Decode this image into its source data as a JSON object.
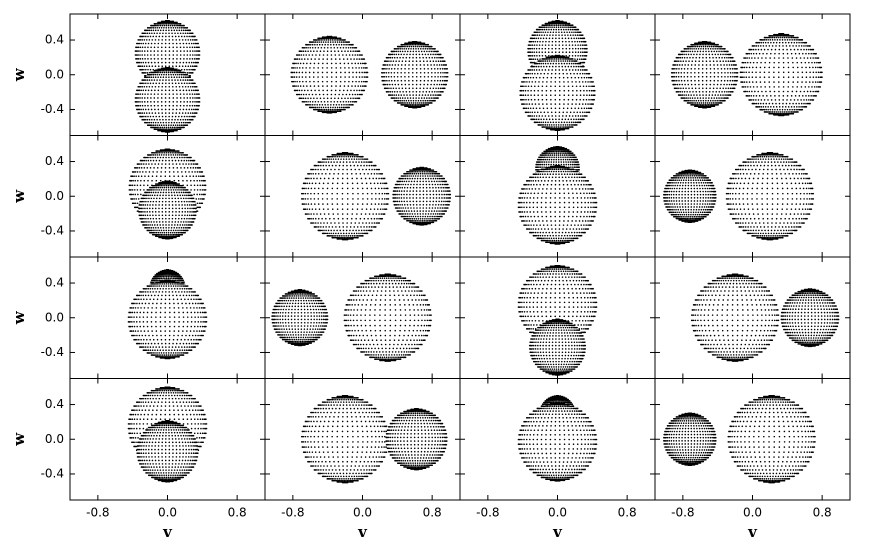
{
  "chart_data": [
    {
      "type": "sphere",
      "xlim": [
        -1.12,
        1.12
      ],
      "ylim": [
        -0.7,
        0.7
      ],
      "xticks": [
        -0.8,
        0,
        0.8
      ],
      "yticks": [
        -0.4,
        {
          "value": 0,
          "label": "0.0"
        },
        0.4
      ],
      "ylabel": "w",
      "stars": [
        {
          "v": 0,
          "w": 0.25,
          "r": 0.37
        },
        {
          "v": 0,
          "w": -0.29,
          "r": 0.37
        }
      ]
    },
    {
      "type": "sphere",
      "xlim": [
        -1.12,
        1.12
      ],
      "ylim": [
        -0.7,
        0.7
      ],
      "xticks": [
        -0.8,
        0,
        0.8
      ],
      "yticks": [
        -0.4,
        0,
        0.4
      ],
      "stars": [
        {
          "v": -0.38,
          "w": 0,
          "r": 0.44
        },
        {
          "v": 0.6,
          "w": 0,
          "r": 0.38
        }
      ]
    },
    {
      "type": "sphere",
      "xlim": [
        -1.12,
        1.12
      ],
      "ylim": [
        -0.7,
        0.7
      ],
      "xticks": [
        -0.8,
        0,
        0.8
      ],
      "yticks": [
        -0.4,
        0,
        0.4
      ],
      "stars": [
        {
          "v": 0,
          "w": 0.28,
          "r": 0.34
        },
        {
          "v": 0,
          "w": -0.21,
          "r": 0.43
        }
      ]
    },
    {
      "type": "sphere",
      "xlim": [
        -1.12,
        1.12
      ],
      "ylim": [
        -0.7,
        0.7
      ],
      "xticks": [
        -0.8,
        0,
        0.8
      ],
      "yticks": [
        -0.4,
        0,
        0.4
      ],
      "stars": [
        {
          "v": -0.55,
          "w": 0,
          "r": 0.38
        },
        {
          "v": 0.33,
          "w": 0,
          "r": 0.47
        }
      ]
    },
    {
      "type": "sphere",
      "xlim": [
        -1.12,
        1.12
      ],
      "ylim": [
        -0.7,
        0.7
      ],
      "xticks": [
        -0.8,
        0,
        0.8
      ],
      "yticks": [
        -0.4,
        {
          "value": 0,
          "label": "0.0"
        },
        0.4
      ],
      "ylabel": "w",
      "stars": [
        {
          "v": 0,
          "w": 0.1,
          "r": 0.44
        },
        {
          "v": 0,
          "w": -0.16,
          "r": 0.33
        }
      ]
    },
    {
      "type": "sphere",
      "xlim": [
        -1.12,
        1.12
      ],
      "ylim": [
        -0.7,
        0.7
      ],
      "xticks": [
        -0.8,
        0,
        0.8
      ],
      "yticks": [
        -0.4,
        0,
        0.4
      ],
      "stars": [
        {
          "v": -0.2,
          "w": 0,
          "r": 0.5
        },
        {
          "v": 0.68,
          "w": 0,
          "r": 0.33
        }
      ]
    },
    {
      "type": "sphere",
      "xlim": [
        -1.12,
        1.12
      ],
      "ylim": [
        -0.7,
        0.7
      ],
      "xticks": [
        -0.8,
        0,
        0.8
      ],
      "yticks": [
        -0.4,
        0,
        0.4
      ],
      "stars": [
        {
          "v": 0,
          "w": 0.32,
          "r": 0.25
        },
        {
          "v": 0,
          "w": -0.1,
          "r": 0.45
        }
      ]
    },
    {
      "type": "sphere",
      "xlim": [
        -1.12,
        1.12
      ],
      "ylim": [
        -0.7,
        0.7
      ],
      "xticks": [
        -0.8,
        0,
        0.8
      ],
      "yticks": [
        -0.4,
        0,
        0.4
      ],
      "stars": [
        {
          "v": 0.2,
          "w": 0,
          "r": 0.5
        },
        {
          "v": -0.72,
          "w": 0,
          "r": 0.3
        }
      ]
    },
    {
      "type": "sphere",
      "xlim": [
        -1.12,
        1.12
      ],
      "ylim": [
        -0.7,
        0.7
      ],
      "xticks": [
        -0.8,
        0,
        0.8
      ],
      "yticks": [
        -0.4,
        {
          "value": 0,
          "label": "0.0"
        },
        0.4
      ],
      "ylabel": "w",
      "stars": [
        {
          "v": 0,
          "w": 0.35,
          "r": 0.2
        },
        {
          "v": 0,
          "w": -0.02,
          "r": 0.45
        }
      ]
    },
    {
      "type": "sphere",
      "xlim": [
        -1.12,
        1.12
      ],
      "ylim": [
        -0.7,
        0.7
      ],
      "xticks": [
        -0.8,
        0,
        0.8
      ],
      "yticks": [
        -0.4,
        0,
        0.4
      ],
      "stars": [
        {
          "v": 0.29,
          "w": 0,
          "r": 0.5
        },
        {
          "v": -0.72,
          "w": 0,
          "r": 0.32
        }
      ]
    },
    {
      "type": "sphere",
      "xlim": [
        -1.12,
        1.12
      ],
      "ylim": [
        -0.7,
        0.7
      ],
      "xticks": [
        -0.8,
        0,
        0.8
      ],
      "yticks": [
        -0.4,
        0,
        0.4
      ],
      "stars": [
        {
          "v": 0,
          "w": 0.15,
          "r": 0.45
        },
        {
          "v": 0,
          "w": -0.34,
          "r": 0.32
        }
      ]
    },
    {
      "type": "sphere",
      "xlim": [
        -1.12,
        1.12
      ],
      "ylim": [
        -0.7,
        0.7
      ],
      "xticks": [
        -0.8,
        0,
        0.8
      ],
      "yticks": [
        -0.4,
        0,
        0.4
      ],
      "stars": [
        {
          "v": -0.2,
          "w": 0,
          "r": 0.5
        },
        {
          "v": 0.66,
          "w": 0,
          "r": 0.33
        }
      ]
    },
    {
      "type": "sphere",
      "xlim": [
        -1.12,
        1.12
      ],
      "ylim": [
        -0.7,
        0.7
      ],
      "xticks": [
        -0.8,
        {
          "value": 0,
          "label": "0.0"
        },
        0.8
      ],
      "yticks": [
        -0.4,
        {
          "value": 0,
          "label": "0.0"
        },
        0.4
      ],
      "xlabel": "v",
      "ylabel": "w",
      "stars": [
        {
          "v": 0,
          "w": 0.15,
          "r": 0.45
        },
        {
          "v": 0,
          "w": -0.14,
          "r": 0.35
        }
      ]
    },
    {
      "type": "sphere",
      "xlim": [
        -1.12,
        1.12
      ],
      "ylim": [
        -0.7,
        0.7
      ],
      "xticks": [
        -0.8,
        {
          "value": 0,
          "label": "0.0"
        },
        0.8
      ],
      "yticks": [
        -0.4,
        0,
        0.4
      ],
      "xlabel": "v",
      "stars": [
        {
          "v": -0.2,
          "w": 0,
          "r": 0.5
        },
        {
          "v": 0.62,
          "w": 0,
          "r": 0.35
        }
      ]
    },
    {
      "type": "sphere",
      "xlim": [
        -1.12,
        1.12
      ],
      "ylim": [
        -0.7,
        0.7
      ],
      "xticks": [
        -0.8,
        {
          "value": 0,
          "label": "0.0"
        },
        0.8
      ],
      "yticks": [
        -0.4,
        0,
        0.4
      ],
      "xlabel": "v",
      "stars": [
        {
          "v": 0,
          "w": 0.3,
          "r": 0.2
        },
        {
          "v": 0,
          "w": -0.03,
          "r": 0.45
        }
      ]
    },
    {
      "type": "sphere",
      "xlim": [
        -1.12,
        1.12
      ],
      "ylim": [
        -0.7,
        0.7
      ],
      "xticks": [
        -0.8,
        {
          "value": 0,
          "label": "0.0"
        },
        0.8
      ],
      "yticks": [
        -0.4,
        0,
        0.4
      ],
      "xlabel": "v",
      "stars": [
        {
          "v": 0.22,
          "w": 0,
          "r": 0.5
        },
        {
          "v": -0.72,
          "w": 0,
          "r": 0.3
        }
      ]
    }
  ]
}
